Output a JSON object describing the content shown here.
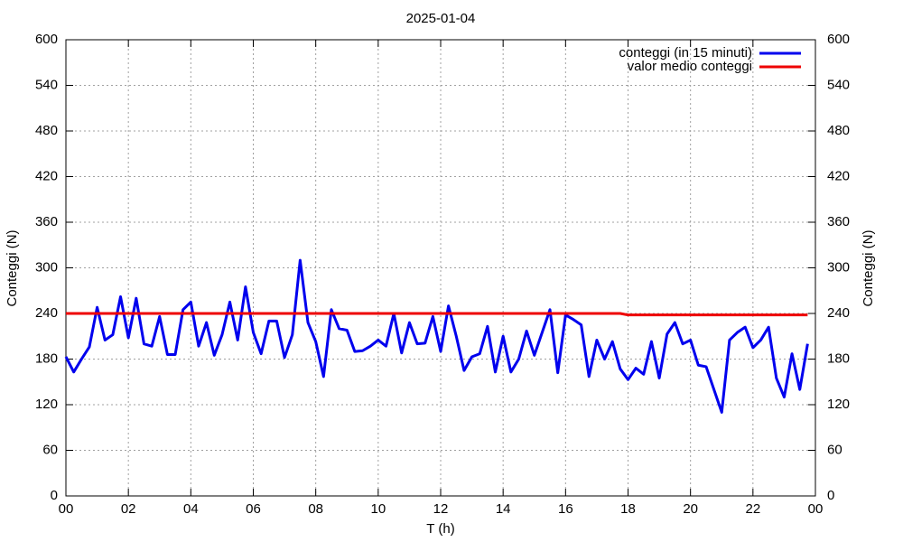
{
  "chart_data": {
    "type": "line",
    "title": "2025-01-04",
    "xlabel": "T (h)",
    "ylabel": "Conteggi (N)",
    "y2label": "Conteggi (N)",
    "x": [
      0,
      0.25,
      0.5,
      0.75,
      1,
      1.25,
      1.5,
      1.75,
      2,
      2.25,
      2.5,
      2.75,
      3,
      3.25,
      3.5,
      3.75,
      4,
      4.25,
      4.5,
      4.75,
      5,
      5.25,
      5.5,
      5.75,
      6,
      6.25,
      6.5,
      6.75,
      7,
      7.25,
      7.5,
      7.75,
      8,
      8.25,
      8.5,
      8.75,
      9,
      9.25,
      9.5,
      9.75,
      10,
      10.25,
      10.5,
      10.75,
      11,
      11.25,
      11.5,
      11.75,
      12,
      12.25,
      12.5,
      12.75,
      13,
      13.25,
      13.5,
      13.75,
      14,
      14.25,
      14.5,
      14.75,
      15,
      15.25,
      15.5,
      15.75,
      16,
      16.25,
      16.5,
      16.75,
      17,
      17.25,
      17.5,
      17.75,
      18,
      18.25,
      18.5,
      18.75,
      19,
      19.25,
      19.5,
      19.75,
      20,
      20.25,
      20.5,
      20.75,
      21,
      21.25,
      21.5,
      21.75,
      22,
      22.25,
      22.5,
      22.75,
      23,
      23.25,
      23.5,
      23.75
    ],
    "series": [
      {
        "name": "conteggi (in 15 minuti)",
        "color": "#0000ee",
        "values": [
          183,
          163,
          180,
          196,
          248,
          205,
          212,
          262,
          208,
          260,
          200,
          197,
          236,
          186,
          186,
          245,
          255,
          197,
          228,
          185,
          212,
          255,
          205,
          275,
          215,
          187,
          230,
          230,
          182,
          212,
          310,
          228,
          203,
          157,
          245,
          220,
          218,
          190,
          191,
          197,
          205,
          197,
          240,
          188,
          228,
          200,
          201,
          236,
          190,
          250,
          210,
          165,
          183,
          187,
          223,
          163,
          210,
          163,
          180,
          217,
          185,
          215,
          245,
          162,
          238,
          232,
          225,
          157,
          205,
          180,
          203,
          167,
          153,
          168,
          160,
          203,
          155,
          213,
          228,
          200,
          205,
          172,
          170,
          140,
          110,
          205,
          215,
          222,
          195,
          205,
          222,
          155,
          130,
          187,
          140,
          200
        ]
      },
      {
        "name": "valor medio conteggi",
        "color": "#ee0000",
        "values": [
          240,
          240,
          240,
          240,
          240,
          240,
          240,
          240,
          240,
          240,
          240,
          240,
          240,
          240,
          240,
          240,
          240,
          240,
          240,
          240,
          240,
          240,
          240,
          240,
          240,
          240,
          240,
          240,
          240,
          240,
          240,
          240,
          240,
          240,
          240,
          240,
          240,
          240,
          240,
          240,
          240,
          240,
          240,
          240,
          240,
          240,
          240,
          240,
          240,
          240,
          240,
          240,
          240,
          240,
          240,
          240,
          240,
          240,
          240,
          240,
          240,
          240,
          240,
          240,
          240,
          240,
          240,
          240,
          240,
          240,
          240,
          240,
          238,
          238,
          238,
          238,
          238,
          238,
          238,
          238,
          238,
          238,
          238,
          238,
          238,
          238,
          238,
          238,
          238,
          238,
          238,
          238,
          238,
          238,
          238,
          238
        ]
      }
    ],
    "xlim": [
      0,
      24
    ],
    "xticks": [
      {
        "value": 0,
        "label": "00"
      },
      {
        "value": 2,
        "label": "02"
      },
      {
        "value": 4,
        "label": "04"
      },
      {
        "value": 6,
        "label": "06"
      },
      {
        "value": 8,
        "label": "08"
      },
      10,
      12,
      14,
      16,
      18,
      20,
      22,
      {
        "value": 24,
        "label": "00"
      }
    ],
    "ylim": [
      0,
      600
    ],
    "yticks": [
      0,
      60,
      120,
      180,
      240,
      300,
      360,
      420,
      480,
      540,
      600
    ],
    "y2lim": [
      0,
      600
    ],
    "y2ticks": [
      0,
      60,
      120,
      180,
      240,
      300,
      360,
      420,
      480,
      540,
      600
    ],
    "grid": true,
    "legend": "top-right"
  }
}
